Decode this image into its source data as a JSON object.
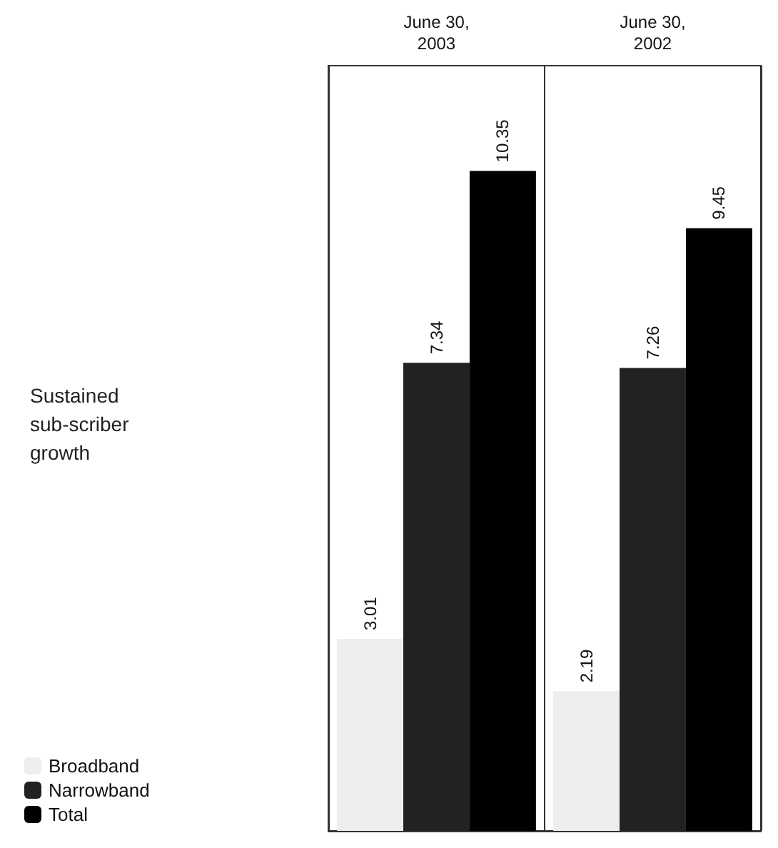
{
  "chart_data": {
    "type": "bar",
    "title": "Sustained sub-scriber growth",
    "categories": [
      "June 30, 2003",
      "June 30, 2002"
    ],
    "series": [
      {
        "name": "Broadband",
        "color": "#eeeeee",
        "values": [
          3.01,
          2.19
        ]
      },
      {
        "name": "Narrowband",
        "color": "#222222",
        "values": [
          7.34,
          7.26
        ]
      },
      {
        "name": "Total",
        "color": "#000000",
        "values": [
          10.35,
          9.45
        ]
      }
    ],
    "data_labels": true,
    "legend": "bottom left"
  }
}
